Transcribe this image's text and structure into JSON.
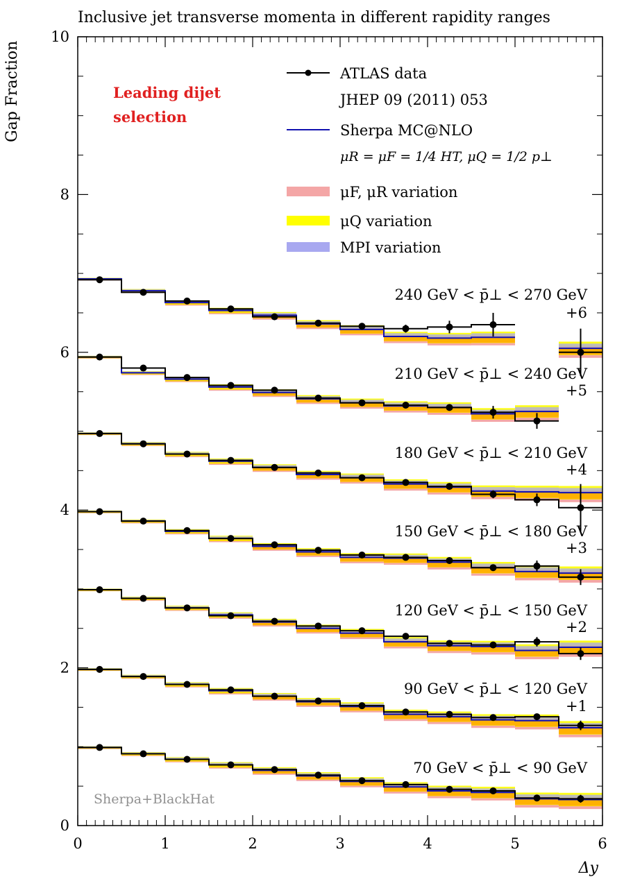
{
  "chart_data": {
    "type": "line",
    "title": "Inclusive jet transverse momenta in different rapidity ranges",
    "xlabel": "Δy",
    "ylabel": "Gap Fraction",
    "xlim": [
      0,
      6
    ],
    "ylim": [
      0,
      10
    ],
    "x_ticks": [
      "0",
      "1",
      "2",
      "3",
      "4",
      "5",
      "6"
    ],
    "y_ticks": [
      "0",
      "2",
      "4",
      "6",
      "8",
      "10"
    ],
    "bin_edges": [
      0,
      0.5,
      1,
      1.5,
      2,
      2.5,
      3,
      3.5,
      4,
      4.5,
      5,
      5.5,
      6
    ],
    "selection_label": [
      "Leading dijet",
      "selection"
    ],
    "watermark": "Sherpa+BlackHat",
    "legend": [
      {
        "label": "ATLAS data",
        "sub": "JHEP 09 (2011) 053",
        "style": "data"
      },
      {
        "label": "Sherpa MC@NLO",
        "sub": "μR = μF = 1/4 HT,   μQ = 1/2 p⊥",
        "style": "mc",
        "color": "#1010b0"
      },
      {
        "label": "μF, μR variation",
        "style": "band",
        "color": "#f4a6a6"
      },
      {
        "label": "μQ variation",
        "style": "band",
        "color": "#ffff00"
      },
      {
        "label": "MPI variation",
        "style": "band",
        "color": "#a8a8f0"
      }
    ],
    "colors": {
      "data": "#000000",
      "mc": "#1010b0",
      "band_scale": "#f4a6a6",
      "band_q": "#ffff00",
      "band_mpi": "#a8a8f0",
      "band_overlap": "#ffa500",
      "selection": "#e02020",
      "watermark": "#909090"
    },
    "series": [
      {
        "name": "240 GeV < p̄⊥ < 270 GeV",
        "offset": "+6",
        "data": [
          6.92,
          6.76,
          6.65,
          6.55,
          6.45,
          6.37,
          6.33,
          6.3,
          6.32,
          6.35,
          null,
          6.0
        ],
        "err": [
          0.01,
          0.02,
          0.02,
          0.02,
          0.02,
          0.03,
          0.03,
          0.05,
          0.08,
          0.15,
          null,
          0.3
        ],
        "mc": [
          6.93,
          6.78,
          6.63,
          6.53,
          6.47,
          6.36,
          6.29,
          6.2,
          6.18,
          6.19,
          null,
          6.05
        ]
      },
      {
        "name": "210 GeV < p̄⊥ < 240 GeV",
        "offset": "+5",
        "data": [
          5.94,
          5.8,
          5.68,
          5.58,
          5.52,
          5.42,
          5.36,
          5.33,
          5.3,
          5.24,
          5.13,
          null
        ],
        "err": [
          0.01,
          0.01,
          0.02,
          0.02,
          0.02,
          0.02,
          0.02,
          0.03,
          0.04,
          0.08,
          0.1,
          null
        ],
        "mc": [
          5.94,
          5.74,
          5.66,
          5.56,
          5.49,
          5.41,
          5.36,
          5.32,
          5.3,
          5.22,
          5.25,
          null
        ]
      },
      {
        "name": "180 GeV < p̄⊥ < 210 GeV",
        "offset": "+4",
        "data": [
          4.97,
          4.84,
          4.71,
          4.63,
          4.54,
          4.47,
          4.41,
          4.35,
          4.3,
          4.2,
          4.13,
          4.03
        ],
        "err": [
          0.01,
          0.01,
          0.01,
          0.01,
          0.02,
          0.02,
          0.02,
          0.02,
          0.03,
          0.05,
          0.08,
          0.3
        ],
        "mc": [
          4.97,
          4.84,
          4.71,
          4.62,
          4.54,
          4.45,
          4.41,
          4.33,
          4.29,
          4.24,
          4.23,
          4.22
        ]
      },
      {
        "name": "150 GeV < p̄⊥ < 180 GeV",
        "offset": "+3",
        "data": [
          3.98,
          3.86,
          3.74,
          3.64,
          3.56,
          3.49,
          3.43,
          3.4,
          3.36,
          3.27,
          3.29,
          3.15
        ],
        "err": [
          0.01,
          0.01,
          0.01,
          0.01,
          0.02,
          0.02,
          0.02,
          0.02,
          0.03,
          0.03,
          0.07,
          0.1
        ],
        "mc": [
          3.98,
          3.86,
          3.73,
          3.64,
          3.54,
          3.47,
          3.4,
          3.39,
          3.34,
          3.27,
          3.22,
          3.2
        ]
      },
      {
        "name": "120 GeV < p̄⊥ < 150 GeV",
        "offset": "+2",
        "data": [
          2.99,
          2.88,
          2.76,
          2.66,
          2.59,
          2.53,
          2.47,
          2.4,
          2.31,
          2.29,
          2.33,
          2.18
        ],
        "err": [
          0.01,
          0.01,
          0.01,
          0.01,
          0.01,
          0.02,
          0.02,
          0.02,
          0.02,
          0.03,
          0.06,
          0.08
        ],
        "mc": [
          2.99,
          2.88,
          2.76,
          2.67,
          2.58,
          2.5,
          2.44,
          2.33,
          2.28,
          2.27,
          2.22,
          2.26
        ]
      },
      {
        "name": "90 GeV < p̄⊥ < 120 GeV",
        "offset": "+1",
        "data": [
          1.98,
          1.89,
          1.79,
          1.72,
          1.64,
          1.58,
          1.52,
          1.44,
          1.41,
          1.37,
          1.38,
          1.27
        ],
        "err": [
          0.01,
          0.01,
          0.01,
          0.01,
          0.01,
          0.01,
          0.02,
          0.02,
          0.02,
          0.03,
          0.04,
          0.06
        ],
        "mc": [
          1.98,
          1.89,
          1.79,
          1.71,
          1.64,
          1.57,
          1.51,
          1.41,
          1.38,
          1.34,
          1.33,
          1.24
        ]
      },
      {
        "name": "70 GeV < p̄⊥ <   90 GeV",
        "offset": "",
        "data": [
          0.99,
          0.91,
          0.84,
          0.77,
          0.71,
          0.64,
          0.57,
          0.52,
          0.46,
          0.44,
          0.35,
          0.34
        ],
        "err": [
          0.01,
          0.01,
          0.01,
          0.01,
          0.01,
          0.01,
          0.01,
          0.02,
          0.02,
          0.03,
          0.04,
          0.05
        ],
        "mc": [
          0.99,
          0.91,
          0.84,
          0.77,
          0.7,
          0.63,
          0.56,
          0.49,
          0.44,
          0.42,
          0.34,
          0.33
        ]
      }
    ]
  }
}
